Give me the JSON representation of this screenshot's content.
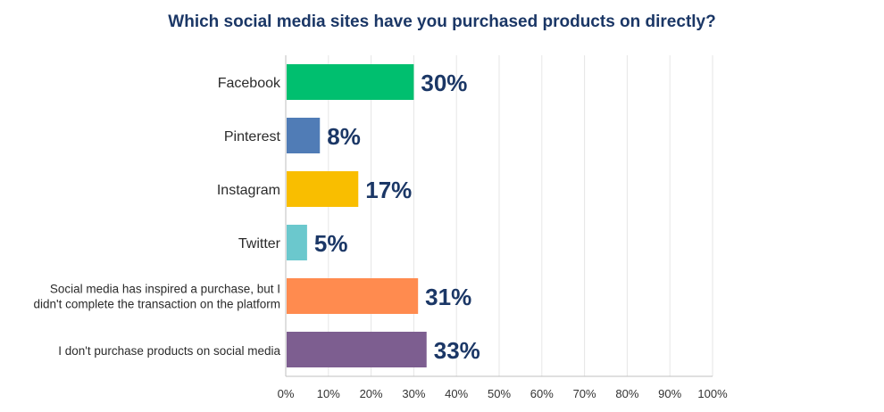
{
  "chart_data": {
    "type": "bar",
    "orientation": "horizontal",
    "title": "Which social media sites have you purchased products on directly?",
    "categories": [
      "Facebook",
      "Pinterest",
      "Instagram",
      "Twitter",
      "Social media has inspired a purchase, but I didn't complete the transaction on the platform",
      "I don't purchase products on social media"
    ],
    "category_lines": [
      [
        "Facebook"
      ],
      [
        "Pinterest"
      ],
      [
        "Instagram"
      ],
      [
        "Twitter"
      ],
      [
        "Social media has inspired a purchase, but I",
        "didn't complete the transaction on the platform"
      ],
      [
        "I don't purchase products on social media"
      ]
    ],
    "values": [
      30,
      8,
      17,
      5,
      31,
      33
    ],
    "value_labels": [
      "30%",
      "8%",
      "17%",
      "5%",
      "31%",
      "33%"
    ],
    "colors": [
      "#00bf6f",
      "#507cb6",
      "#f9be00",
      "#6bc8cd",
      "#ff8b4f",
      "#7d5e90"
    ],
    "xlim": [
      0,
      100
    ],
    "xticks": [
      0,
      10,
      20,
      30,
      40,
      50,
      60,
      70,
      80,
      90,
      100
    ],
    "xtick_labels": [
      "0%",
      "10%",
      "20%",
      "30%",
      "40%",
      "50%",
      "60%",
      "70%",
      "80%",
      "90%",
      "100%"
    ],
    "grid": true,
    "legend": "none"
  }
}
